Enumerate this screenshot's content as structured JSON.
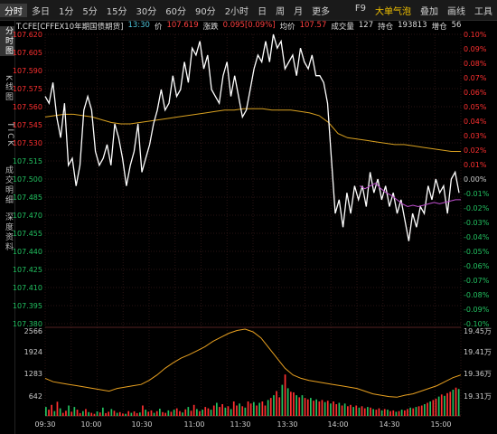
{
  "toolbar": {
    "items": [
      "分时",
      "多日",
      "1分",
      "5分",
      "15分",
      "30分",
      "60分",
      "90分",
      "2小时",
      "日",
      "周",
      "月",
      "更多"
    ],
    "right_items": [
      "F9",
      "大单气泡",
      "叠加",
      "画线",
      "工具"
    ]
  },
  "sidebar": {
    "items": [
      "分时图",
      "K线图",
      "TICK",
      "成交明细",
      "深度资料"
    ]
  },
  "infobar": {
    "code": "T.CFE[CFFEX10年期国债期货]",
    "time": "13:30",
    "price_label": "价",
    "price": "107.619",
    "change_label": "涨跌",
    "change": "0.095[0.09%]",
    "avg_label": "均价",
    "avg": "107.57",
    "volume_label": "成交量",
    "volume": "127",
    "oi_label": "持仓",
    "oi": "193813",
    "extra_label": "增仓",
    "extra": "56"
  },
  "colors": {
    "up": "#ff3030",
    "down": "#22c060",
    "price": "#ffffff",
    "avg": "#d8a020",
    "purple": "#c050d0",
    "oi": "#e8a020"
  },
  "chart_data": [
    {
      "type": "line",
      "left_axis": [
        "107.620",
        "107.605",
        "107.590",
        "107.575",
        "107.560",
        "107.545",
        "107.530",
        "107.515",
        "107.500",
        "107.485",
        "107.470",
        "107.455",
        "107.440",
        "107.425",
        "107.410",
        "107.395",
        "107.380"
      ],
      "right_axis": [
        "0.10%",
        "0.09%",
        "0.08%",
        "0.07%",
        "0.06%",
        "0.05%",
        "0.04%",
        "0.03%",
        "0.02%",
        "0.01%",
        "0.00%",
        "-0.01%",
        "-0.02%",
        "-0.03%",
        "-0.04%",
        "-0.05%",
        "-0.06%",
        "-0.07%",
        "-0.08%",
        "-0.09%",
        "-0.10%"
      ],
      "ylim": [
        107.41,
        107.62
      ],
      "x_labels": [
        "09:30",
        "10:00",
        "10:30",
        "11:00",
        "11:30",
        "13:30",
        "14:00",
        "14:30",
        "15:00"
      ],
      "series": [
        {
          "values": [
            107.575,
            107.57,
            107.585,
            107.56,
            107.545,
            107.57,
            107.525,
            107.53,
            107.51,
            107.525,
            107.565,
            107.575,
            107.565,
            107.535,
            107.525,
            107.53,
            107.54,
            107.525,
            107.555,
            107.545,
            107.53,
            107.51,
            107.525,
            107.535,
            107.555,
            107.52,
            107.53,
            107.54,
            107.555,
            107.565,
            107.58,
            107.565,
            107.57,
            107.59,
            107.575,
            107.58,
            107.6,
            107.585,
            107.61,
            107.605,
            107.615,
            107.595,
            107.605,
            107.58,
            107.575,
            107.57,
            107.59,
            107.6,
            107.575,
            107.59,
            107.575,
            107.56,
            107.565,
            107.58,
            107.595,
            107.605,
            107.6,
            107.615,
            107.6,
            107.62,
            107.61,
            107.615,
            107.595,
            107.6,
            107.605,
            107.59,
            107.61,
            107.6,
            107.595,
            107.605,
            107.59,
            107.59,
            107.585,
            107.57,
            107.53,
            107.49,
            107.5,
            107.48,
            107.505,
            107.49,
            107.51,
            107.5,
            107.51,
            107.495,
            107.52,
            107.505,
            107.515,
            107.5,
            107.51,
            107.495,
            107.505,
            107.49,
            107.5,
            107.485,
            107.47,
            107.49,
            107.48,
            107.495,
            107.49,
            107.51,
            107.5,
            107.515,
            107.505,
            107.51,
            107.49,
            107.515,
            107.52,
            107.505
          ]
        },
        {
          "values": [
            107.56,
            107.561,
            107.562,
            107.562,
            107.561,
            107.56,
            107.558,
            107.556,
            107.555,
            107.555,
            107.556,
            107.557,
            107.558,
            107.559,
            107.56,
            107.561,
            107.562,
            107.563,
            107.564,
            107.565,
            107.565,
            107.566,
            107.566,
            107.566,
            107.565,
            107.565,
            107.565,
            107.564,
            107.563,
            107.561,
            107.556,
            107.548,
            107.545,
            107.544,
            107.543,
            107.542,
            107.541,
            107.54,
            107.54,
            107.539,
            107.538,
            107.537,
            107.536,
            107.535,
            107.535
          ]
        },
        {
          "values": [
            107.51,
            107.508,
            107.51,
            107.512,
            107.508,
            107.505,
            107.503,
            107.5,
            107.497,
            107.495,
            107.496,
            107.495,
            107.496,
            107.497,
            107.498,
            107.497,
            107.498,
            107.499,
            107.5,
            107.5
          ]
        }
      ]
    },
    {
      "type": "bar",
      "left_axis": [
        "2566",
        "1924",
        "1283",
        "642"
      ],
      "right_axis": [
        "19.45万",
        "19.41万",
        "19.36万",
        "19.31万"
      ],
      "series": [
        {
          "values": [
            260,
            180,
            320,
            140,
            410,
            220,
            90,
            150,
            300,
            120,
            260,
            180,
            80,
            140,
            200,
            110,
            90,
            60,
            130,
            100,
            240,
            80,
            120,
            200,
            150,
            90,
            110,
            70,
            60,
            140,
            90,
            130,
            80,
            100,
            300,
            180,
            120,
            160,
            90,
            140,
            210,
            110,
            90,
            160,
            120,
            180,
            220,
            140,
            100,
            190,
            260,
            150,
            320,
            200,
            140,
            180,
            260,
            220,
            180,
            300,
            380,
            260,
            340,
            240,
            280,
            200,
            420,
            300,
            360,
            280,
            240,
            420,
            360,
            400,
            300,
            380,
            420,
            300,
            460,
            520,
            600,
            720,
            540,
            900,
            1200,
            800,
            700,
            680,
            600,
            540,
            600,
            520,
            480,
            520,
            440,
            480,
            420,
            460,
            400,
            440,
            360,
            420,
            340,
            380,
            300,
            360,
            280,
            320,
            260,
            300,
            240,
            280,
            220,
            260,
            240,
            200,
            180,
            220,
            160,
            200,
            180,
            140,
            160,
            120,
            140,
            180,
            160,
            200,
            240,
            220,
            260,
            280,
            300,
            340,
            380,
            420,
            460,
            500,
            560,
            620,
            580,
            660,
            700,
            760,
            820,
            780
          ]
        },
        {
          "values": [
            193750,
            193700,
            193680,
            193660,
            193640,
            193620,
            193600,
            193580,
            193560,
            193600,
            193620,
            193640,
            193660,
            193720,
            193800,
            193900,
            193980,
            194050,
            194100,
            194160,
            194220,
            194300,
            194360,
            194420,
            194460,
            194480,
            194440,
            194350,
            194200,
            194050,
            193900,
            193800,
            193750,
            193720,
            193700,
            193680,
            193660,
            193640,
            193620,
            193600,
            193560,
            193520,
            193500,
            193480,
            193470,
            193500,
            193520,
            193560,
            193600,
            193640,
            193700,
            193760,
            193800
          ]
        }
      ]
    }
  ]
}
